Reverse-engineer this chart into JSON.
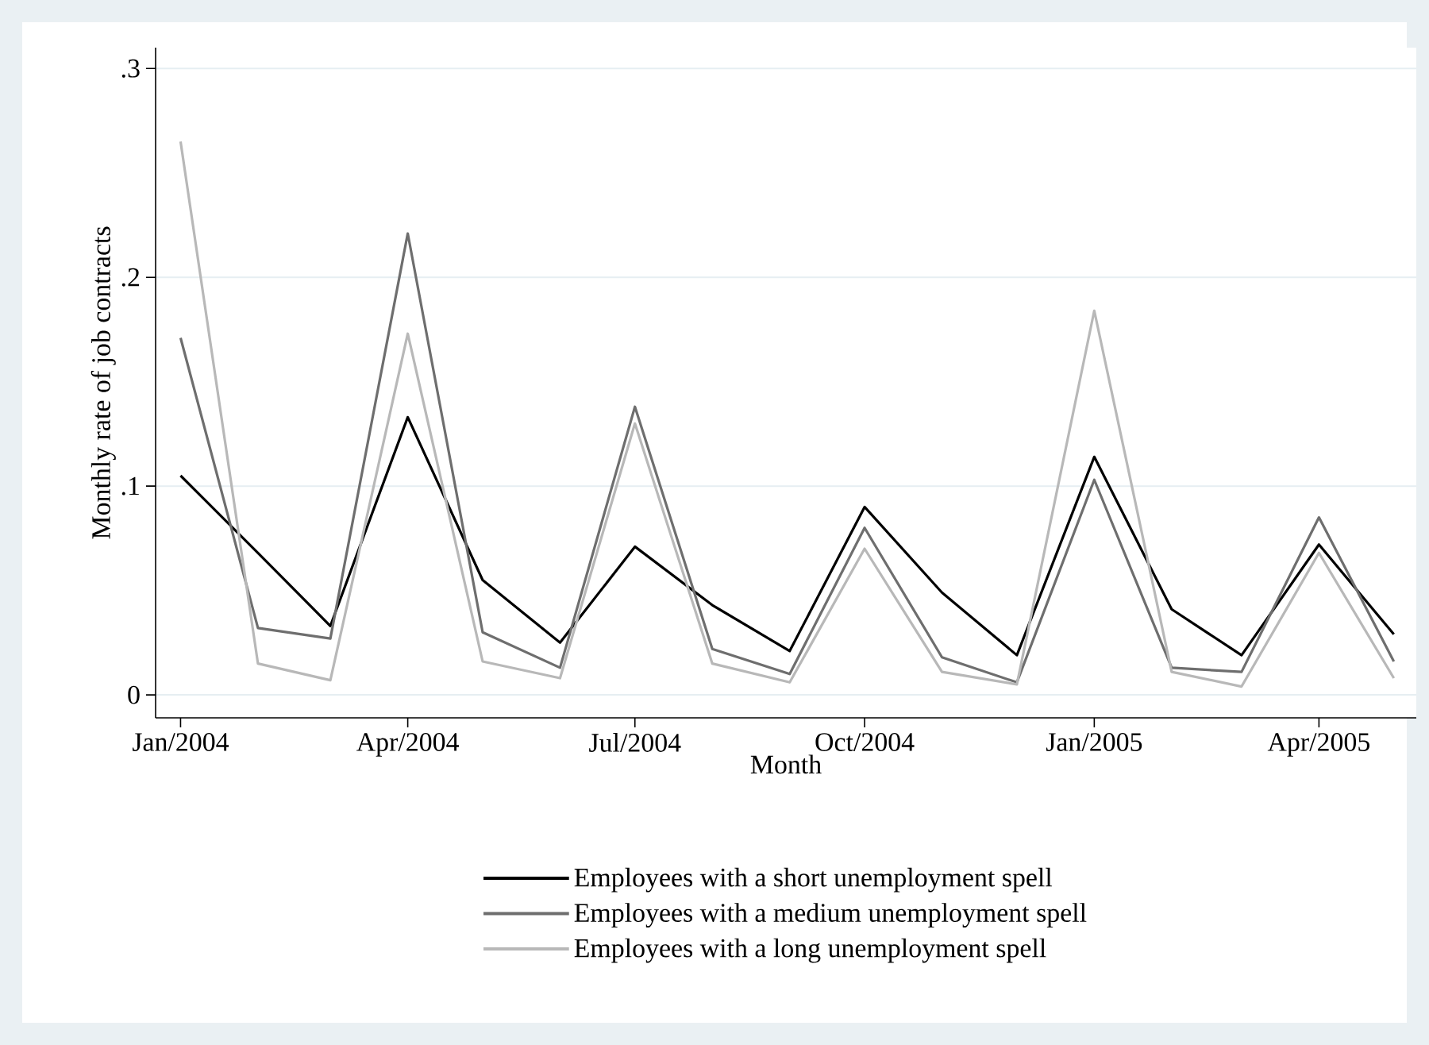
{
  "chart_data": {
    "type": "line",
    "xlabel": "Month",
    "ylabel": "Monthly rate of job contracts",
    "x": [
      "2004-01",
      "2004-02",
      "2004-03",
      "2004-04",
      "2004-05",
      "2004-06",
      "2004-07",
      "2004-08",
      "2004-09",
      "2004-10",
      "2004-11",
      "2004-12",
      "2005-01",
      "2005-02",
      "2005-03",
      "2005-04",
      "2005-05"
    ],
    "series": [
      {
        "name": "Employees with a short unemployment spell",
        "color": "#000000",
        "values": [
          0.105,
          0.068,
          0.033,
          0.133,
          0.055,
          0.025,
          0.071,
          0.043,
          0.021,
          0.09,
          0.049,
          0.019,
          0.114,
          0.041,
          0.019,
          0.072,
          0.029
        ]
      },
      {
        "name": "Employees with a medium unemployment spell",
        "color": "#6e6e6e",
        "values": [
          0.171,
          0.032,
          0.027,
          0.221,
          0.03,
          0.013,
          0.138,
          0.022,
          0.01,
          0.08,
          0.018,
          0.006,
          0.103,
          0.013,
          0.011,
          0.085,
          0.016
        ]
      },
      {
        "name": "Employees with a long unemployment spell",
        "color": "#b8b8b8",
        "values": [
          0.265,
          0.015,
          0.007,
          0.173,
          0.016,
          0.008,
          0.13,
          0.015,
          0.006,
          0.07,
          0.011,
          0.005,
          0.184,
          0.011,
          0.004,
          0.068,
          0.008
        ]
      }
    ],
    "xlim": [
      "2003-12-22",
      "2005-05-10"
    ],
    "xticks": [
      {
        "value": "2004-01",
        "label": "Jan/2004"
      },
      {
        "value": "2004-04",
        "label": "Apr/2004"
      },
      {
        "value": "2004-07",
        "label": "Jul/2004"
      },
      {
        "value": "2004-10",
        "label": "Oct/2004"
      },
      {
        "value": "2005-01",
        "label": "Jan/2005"
      },
      {
        "value": "2005-04",
        "label": "Apr/2005"
      }
    ],
    "ylim": [
      -0.011,
      0.31
    ],
    "yticks": [
      {
        "value": 0,
        "label": "0"
      },
      {
        "value": 0.1,
        "label": ".1"
      },
      {
        "value": 0.2,
        "label": ".2"
      },
      {
        "value": 0.3,
        "label": ".3"
      }
    ],
    "grid": "y",
    "legend": "bottom",
    "line_style": "solid",
    "marker": "none"
  }
}
